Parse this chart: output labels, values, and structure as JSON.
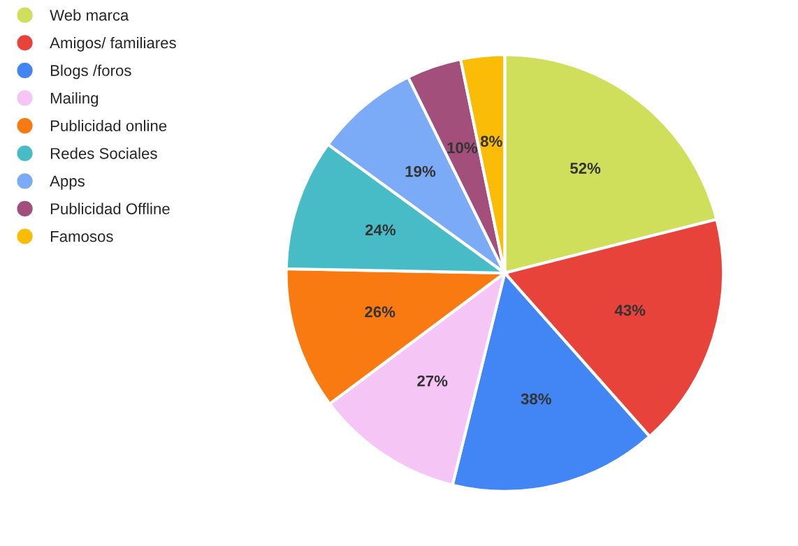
{
  "chart_data": {
    "type": "pie",
    "categories": [
      "Web marca",
      "Amigos/ familiares",
      "Blogs /foros",
      "Mailing",
      "Publicidad online",
      "Redes Sociales",
      "Apps",
      "Publicidad Offline",
      "Famosos"
    ],
    "values": [
      52,
      43,
      38,
      27,
      26,
      24,
      19,
      10,
      8
    ],
    "colors": [
      "#cfdf5b",
      "#e8433a",
      "#4285f4",
      "#f5c6f5",
      "#fa7a12",
      "#47bcc6",
      "#7babf6",
      "#a24f7c",
      "#fbbc07"
    ],
    "value_labels": [
      "52%",
      "43%",
      "38%",
      "27%",
      "26%",
      "24%",
      "19%",
      "10%",
      "8%"
    ],
    "legend": "left"
  }
}
